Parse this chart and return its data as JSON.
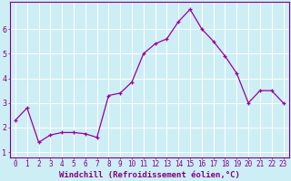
{
  "x": [
    0,
    1,
    2,
    3,
    4,
    5,
    6,
    7,
    8,
    9,
    10,
    11,
    12,
    13,
    14,
    15,
    16,
    17,
    18,
    19,
    20,
    21,
    22,
    23
  ],
  "y": [
    2.3,
    2.8,
    1.4,
    1.7,
    1.8,
    1.8,
    1.75,
    1.6,
    3.3,
    3.4,
    3.85,
    5.0,
    5.4,
    5.6,
    6.3,
    6.8,
    6.0,
    5.5,
    4.9,
    4.2,
    3.0,
    3.5,
    3.5,
    3.0
  ],
  "xlabel": "Windchill (Refroidissement éolien,°C)",
  "ylim_min": 0.8,
  "ylim_max": 7.1,
  "xlim_min": -0.5,
  "xlim_max": 23.5,
  "yticks": [
    1,
    2,
    3,
    4,
    5,
    6
  ],
  "ytick_labels": [
    "1",
    "2",
    "3",
    "4",
    "5",
    "6"
  ],
  "xtick_labels": [
    "0",
    "1",
    "2",
    "3",
    "4",
    "5",
    "6",
    "7",
    "8",
    "9",
    "10",
    "11",
    "12",
    "13",
    "14",
    "15",
    "16",
    "17",
    "18",
    "19",
    "20",
    "21",
    "22",
    "23"
  ],
  "line_color": "#990099",
  "marker_color": "#990099",
  "bg_color": "#ceeef5",
  "grid_color": "#aaddee",
  "fig_bg": "#ceeef5",
  "label_color": "#800080",
  "tick_color": "#800080",
  "spine_color": "#800080",
  "xlabel_fontsize": 6.5,
  "tick_fontsize": 5.5
}
